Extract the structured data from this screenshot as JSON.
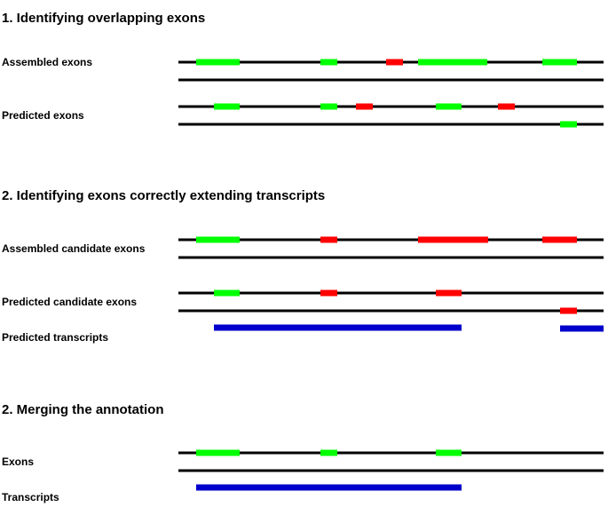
{
  "colors": {
    "match": "#00ff00",
    "mismatch": "#ff0000",
    "transcript": "#0000cc",
    "line": "#000000"
  },
  "sections": [
    {
      "title": "1. Identifying overlapping exons",
      "tracks": [
        {
          "label": "Assembled exons",
          "line1_exons": [
            {
              "status": "match"
            },
            {
              "status": "match"
            },
            {
              "status": "mismatch"
            },
            {
              "status": "match"
            },
            {
              "status": "match"
            }
          ],
          "line2_exons": []
        },
        {
          "label": "Predicted exons",
          "line1_exons": [
            {
              "status": "match"
            },
            {
              "status": "match"
            },
            {
              "status": "mismatch"
            },
            {
              "status": "match"
            },
            {
              "status": "mismatch"
            }
          ],
          "line2_exons": [
            {
              "status": "match"
            }
          ]
        }
      ]
    },
    {
      "title": "2. Identifying exons correctly extending transcripts",
      "tracks": [
        {
          "label": "Assembled candidate exons",
          "line1_exons": [
            {
              "status": "match"
            },
            {
              "status": "mismatch"
            },
            {
              "status": "mismatch"
            },
            {
              "status": "mismatch"
            }
          ],
          "line2_exons": []
        },
        {
          "label": "Predicted candidate exons",
          "line1_exons": [
            {
              "status": "match"
            },
            {
              "status": "mismatch"
            },
            {
              "status": "mismatch"
            }
          ],
          "line2_exons": [
            {
              "status": "mismatch"
            }
          ]
        },
        {
          "label": "Predicted transcripts",
          "transcripts": 2
        }
      ]
    },
    {
      "title": "2. Merging the annotation",
      "tracks": [
        {
          "label": "Exons",
          "line1_exons": [
            {
              "status": "match"
            },
            {
              "status": "match"
            },
            {
              "status": "match"
            }
          ],
          "line2_exons": []
        },
        {
          "label": "Transcripts",
          "transcripts": 1
        }
      ]
    }
  ]
}
